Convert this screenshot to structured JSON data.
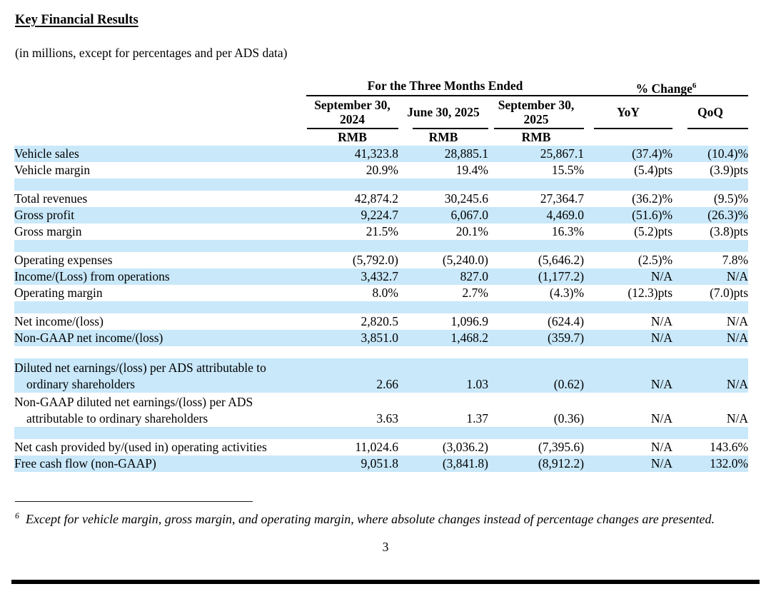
{
  "document": {
    "title": "Key Financial Results",
    "subtitle": "(in millions, except for percentages and per ADS data)",
    "page_number": "3",
    "footnote": {
      "marker": "6",
      "text": "Except for vehicle margin, gross margin, and operating margin, where absolute changes instead of percentage changes are presented."
    }
  },
  "table": {
    "group_headers": {
      "period": "For the Three Months Ended",
      "change": "% Change",
      "change_sup": "6"
    },
    "column_headers": [
      "September 30, 2024",
      "June 30, 2025",
      "September 30, 2025",
      "YoY",
      "QoQ"
    ],
    "currency_row": [
      "RMB",
      "RMB",
      "RMB"
    ],
    "rows": [
      {
        "type": "data",
        "highlight": true,
        "label": "Vehicle sales",
        "values": [
          "41,323.8",
          "28,885.1",
          "25,867.1",
          "(37.4)%",
          "(10.4)%"
        ]
      },
      {
        "type": "data",
        "highlight": false,
        "label": "Vehicle margin",
        "values": [
          "20.9%",
          "19.4%",
          "15.5%",
          "(5.4)pts",
          "(3.9)pts"
        ]
      },
      {
        "type": "spacer",
        "highlight": true
      },
      {
        "type": "data",
        "highlight": false,
        "label": "Total revenues",
        "values": [
          "42,874.2",
          "30,245.6",
          "27,364.7",
          "(36.2)%",
          "(9.5)%"
        ]
      },
      {
        "type": "data",
        "highlight": true,
        "label": "Gross profit",
        "values": [
          "9,224.7",
          "6,067.0",
          "4,469.0",
          "(51.6)%",
          "(26.3)%"
        ]
      },
      {
        "type": "data",
        "highlight": false,
        "label": "Gross margin",
        "values": [
          "21.5%",
          "20.1%",
          "16.3%",
          "(5.2)pts",
          "(3.8)pts"
        ]
      },
      {
        "type": "spacer",
        "highlight": true
      },
      {
        "type": "data",
        "highlight": false,
        "label": "Operating expenses",
        "values": [
          "(5,792.0)",
          "(5,240.0)",
          "(5,646.2)",
          "(2.5)%",
          "7.8%"
        ]
      },
      {
        "type": "data",
        "highlight": true,
        "label": "Income/(Loss) from operations",
        "values": [
          "3,432.7",
          "827.0",
          "(1,177.2)",
          "N/A",
          "N/A"
        ]
      },
      {
        "type": "data",
        "highlight": false,
        "label": "Operating margin",
        "values": [
          "8.0%",
          "2.7%",
          "(4.3)%",
          "(12.3)pts",
          "(7.0)pts"
        ]
      },
      {
        "type": "spacer",
        "highlight": true
      },
      {
        "type": "data",
        "highlight": false,
        "label": "Net income/(loss)",
        "values": [
          "2,820.5",
          "1,096.9",
          "(624.4)",
          "N/A",
          "N/A"
        ]
      },
      {
        "type": "data",
        "highlight": true,
        "label": "Non-GAAP net income/(loss)",
        "values": [
          "3,851.0",
          "1,468.2",
          "(359.7)",
          "N/A",
          "N/A"
        ]
      },
      {
        "type": "spacer",
        "highlight": false
      },
      {
        "type": "data2",
        "highlight": true,
        "label": "Diluted net earnings/(loss) per ADS attributable to",
        "label2": "ordinary shareholders",
        "values": [
          "2.66",
          "1.03",
          "(0.62)",
          "N/A",
          "N/A"
        ]
      },
      {
        "type": "data2",
        "highlight": false,
        "label": "Non-GAAP diluted net earnings/(loss) per ADS",
        "label2": "attributable to ordinary shareholders",
        "values": [
          "3.63",
          "1.37",
          "(0.36)",
          "N/A",
          "N/A"
        ]
      },
      {
        "type": "spacer",
        "highlight": true
      },
      {
        "type": "data",
        "highlight": false,
        "label": "Net cash provided by/(used in) operating activities",
        "values": [
          "11,024.6",
          "(3,036.2)",
          "(7,395.6)",
          "N/A",
          "143.6%"
        ]
      },
      {
        "type": "data",
        "highlight": true,
        "label": "Free cash flow (non-GAAP)",
        "values": [
          "9,051.8",
          "(3,841.8)",
          "(8,912.2)",
          "N/A",
          "132.0%"
        ]
      }
    ]
  },
  "colors": {
    "row_highlight": "#c9e8fa",
    "text": "#000000",
    "rule": "#000000"
  }
}
